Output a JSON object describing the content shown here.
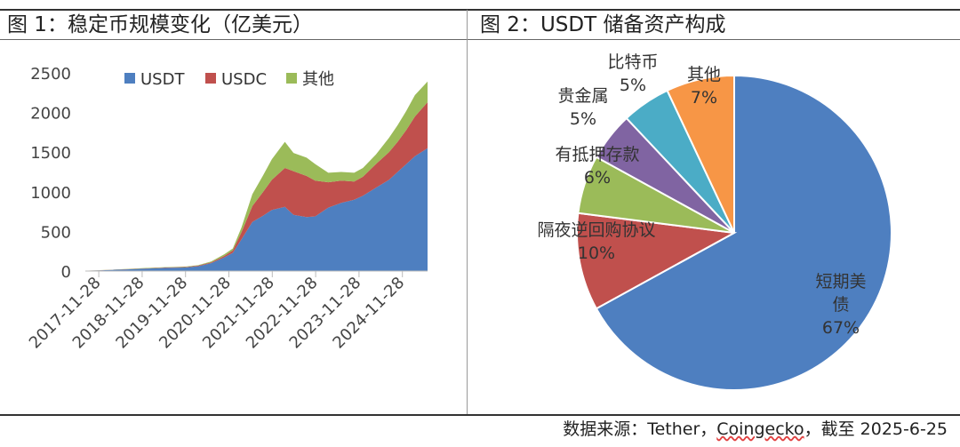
{
  "figure1": {
    "title": "图 1：稳定币规模变化（亿美元）"
  },
  "figure2": {
    "title": "图 2：USDT 储备资产构成"
  },
  "source": {
    "prefix": "数据来源：Tether，",
    "underlined": "Coingecko",
    "suffix": "，截至 2025-6-25"
  },
  "colors": {
    "usdt": "#4e7fc0",
    "usdc": "#c0504d",
    "other": "#9bbb59",
    "purple": "#8064a2",
    "teal": "#4bacc6",
    "orange": "#f79646",
    "axis": "#bbbbbb"
  },
  "chart_data": [
    {
      "type": "area",
      "stacked": true,
      "title": "稳定币规模变化（亿美元）",
      "ylim": [
        0,
        2500
      ],
      "yticks": [
        0,
        500,
        1000,
        1500,
        2000,
        2500
      ],
      "xlim": [
        2017.6,
        2025.49
      ],
      "xtick_labels": [
        "2017-11-28",
        "2018-11-28",
        "2019-11-28",
        "2020-11-28",
        "2021-11-28",
        "2022-11-28",
        "2023-11-28",
        "2024-11-28"
      ],
      "xtick_positions": [
        2017.91,
        2018.91,
        2019.91,
        2020.91,
        2021.91,
        2022.91,
        2023.91,
        2024.91
      ],
      "legend_position": "top",
      "x": [
        2017.6,
        2018.0,
        2018.5,
        2019.0,
        2019.5,
        2019.9,
        2020.2,
        2020.5,
        2020.8,
        2021.0,
        2021.2,
        2021.45,
        2021.7,
        2021.9,
        2022.2,
        2022.4,
        2022.7,
        2022.9,
        2023.2,
        2023.5,
        2023.8,
        2024.0,
        2024.3,
        2024.6,
        2024.8,
        2025.0,
        2025.2,
        2025.49
      ],
      "series": [
        {
          "name": "USDT",
          "values": [
            5,
            10,
            20,
            30,
            40,
            45,
            60,
            100,
            170,
            230,
            400,
            620,
            700,
            770,
            810,
            710,
            680,
            690,
            800,
            860,
            900,
            950,
            1050,
            1150,
            1250,
            1350,
            1450,
            1550
          ]
        },
        {
          "name": "USDC",
          "values": [
            0,
            1,
            2,
            4,
            6,
            6,
            8,
            10,
            20,
            30,
            90,
            200,
            300,
            380,
            490,
            550,
            520,
            450,
            320,
            280,
            230,
            240,
            300,
            350,
            380,
            430,
            500,
            580
          ]
        },
        {
          "name": "其他",
          "values": [
            0,
            1,
            3,
            5,
            5,
            5,
            6,
            10,
            20,
            25,
            60,
            150,
            210,
            260,
            330,
            230,
            230,
            210,
            120,
            110,
            110,
            110,
            120,
            180,
            210,
            240,
            270,
            260
          ]
        }
      ]
    },
    {
      "type": "pie",
      "title": "USDT 储备资产构成",
      "slices": [
        {
          "name": "短期美债",
          "label_lines": [
            "短期美",
            "债"
          ],
          "value": 67,
          "pct": "67%"
        },
        {
          "name": "隔夜逆回购协议",
          "label_lines": [
            "隔夜逆回购协议"
          ],
          "value": 10,
          "pct": "10%"
        },
        {
          "name": "有抵押存款",
          "label_lines": [
            "有抵押存款"
          ],
          "value": 6,
          "pct": "6%"
        },
        {
          "name": "贵金属",
          "label_lines": [
            "贵金属"
          ],
          "value": 5,
          "pct": "5%"
        },
        {
          "name": "比特币",
          "label_lines": [
            "比特币"
          ],
          "value": 5,
          "pct": "5%"
        },
        {
          "name": "其他",
          "label_lines": [
            "其他"
          ],
          "value": 7,
          "pct": "7%"
        }
      ]
    }
  ]
}
